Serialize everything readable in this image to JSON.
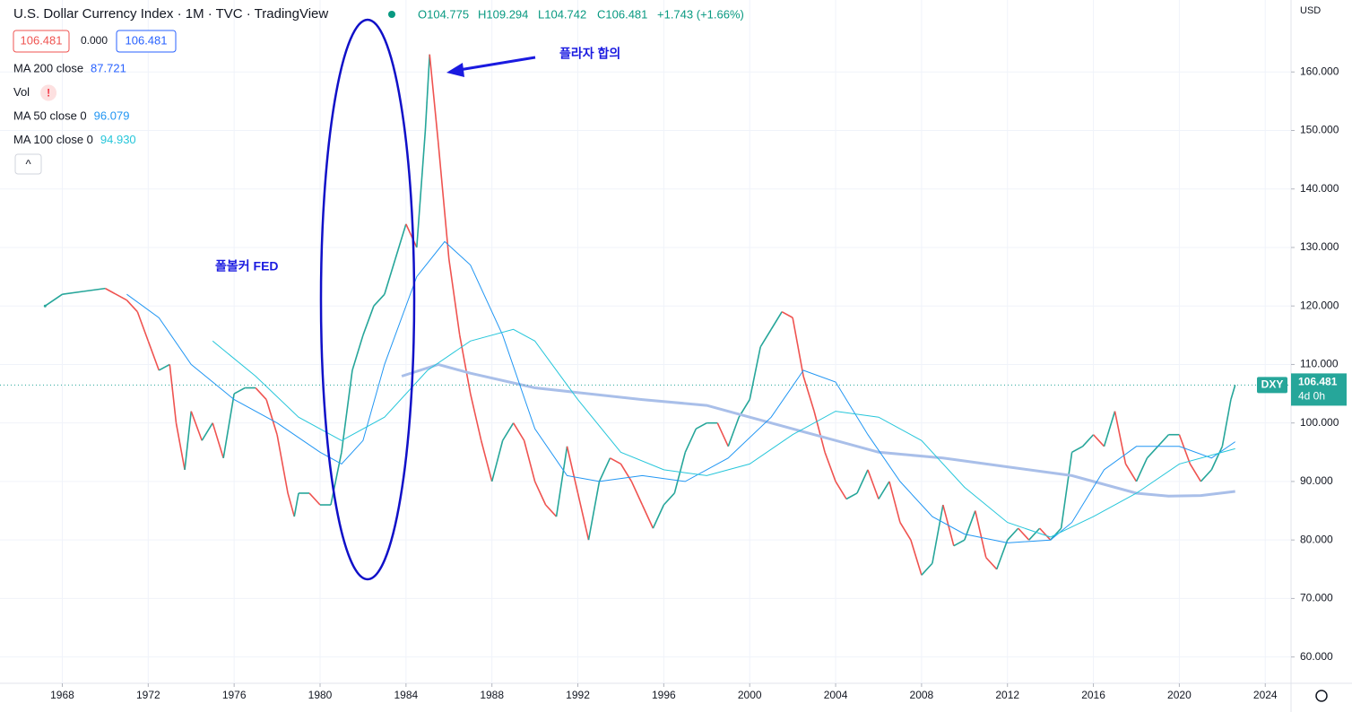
{
  "chart_data": {
    "type": "line",
    "title": "U.S. Dollar Currency Index · 1M · TVC · TradingView",
    "ohlc": [
      "O104.775",
      "H109.294",
      "L104.742",
      "C106.481",
      "+1.743 (+1.66%)"
    ],
    "legend": {
      "price_boxes": [
        "106.481",
        "0.000",
        "106.481"
      ],
      "items": [
        {
          "name": "MA 200 close",
          "value": "87.721",
          "color": "#2962ff"
        },
        {
          "name": "Vol",
          "value": "!",
          "color": "#f23645"
        },
        {
          "name": "MA 50 close 0",
          "value": "96.079",
          "color": "#2196f3"
        },
        {
          "name": "MA 100 close 0",
          "value": "94.930",
          "color": "#26c6da"
        }
      ],
      "collapse": "^"
    },
    "currency": "USD",
    "annotations": [
      "플라자 합의",
      "폴볼커 FED"
    ],
    "price_label": {
      "symbol": "DXY",
      "price": "106.481",
      "countdown": "4d 0h"
    },
    "xlim": [
      1965.1,
      2025.2
    ],
    "ylim": [
      55.5,
      172.3
    ],
    "xticks": [
      1968,
      1972,
      1976,
      1980,
      1984,
      1988,
      1992,
      1996,
      2000,
      2004,
      2008,
      2012,
      2016,
      2020,
      2024
    ],
    "yticks": [
      {
        "value": 60,
        "label": "60.000"
      },
      {
        "value": 70,
        "label": "70.000"
      },
      {
        "value": 80,
        "label": "80.000"
      },
      {
        "value": 90,
        "label": "90.000"
      },
      {
        "value": 100,
        "label": "100.000"
      },
      {
        "value": 110,
        "label": "110.000"
      },
      {
        "value": 120,
        "label": "120.000"
      },
      {
        "value": 130,
        "label": "130.000"
      },
      {
        "value": 140,
        "label": "140.000"
      },
      {
        "value": 150,
        "label": "150.000"
      },
      {
        "value": 160,
        "label": "160.000"
      }
    ],
    "grid": true,
    "series": [
      {
        "name": "DXY",
        "kind": "price",
        "up_color": "#26a69a",
        "down_color": "#ef5350",
        "x": [
          1967.2,
          1968,
          1969,
          1970,
          1971,
          1971.5,
          1972,
          1972.5,
          1973,
          1973.3,
          1973.7,
          1974,
          1974.5,
          1975,
          1975.5,
          1976,
          1976.5,
          1977,
          1977.5,
          1978,
          1978.5,
          1978.8,
          1979,
          1979.5,
          1980,
          1980.5,
          1981,
          1981.5,
          1982,
          1982.5,
          1983,
          1983.5,
          1984,
          1984.5,
          1984.9,
          1985.1,
          1985.5,
          1986,
          1986.5,
          1987,
          1987.5,
          1988,
          1988.5,
          1989,
          1989.5,
          1990,
          1990.5,
          1991,
          1991.5,
          1992,
          1992.5,
          1993,
          1993.5,
          1994,
          1994.5,
          1995,
          1995.5,
          1996,
          1996.5,
          1997,
          1997.5,
          1998,
          1998.5,
          1999,
          1999.5,
          2000,
          2000.5,
          2001,
          2001.5,
          2002,
          2002.5,
          2003,
          2003.5,
          2004,
          2004.5,
          2005,
          2005.5,
          2006,
          2006.5,
          2007,
          2007.5,
          2008,
          2008.5,
          2009,
          2009.5,
          2010,
          2010.5,
          2011,
          2011.5,
          2012,
          2012.5,
          2013,
          2013.5,
          2014,
          2014.5,
          2015,
          2015.5,
          2016,
          2016.5,
          2017,
          2017.5,
          2018,
          2018.5,
          2019,
          2019.5,
          2020,
          2020.5,
          2021,
          2021.5,
          2022,
          2022.4,
          2022.6
        ],
        "values": [
          120,
          122,
          122.5,
          123,
          121,
          119,
          114,
          109,
          110,
          100,
          92,
          102,
          97,
          100,
          94,
          105,
          106,
          106,
          104,
          98,
          88,
          84,
          88,
          88,
          86,
          86,
          95,
          109,
          115,
          120,
          122,
          128,
          134,
          130,
          150,
          163,
          148,
          128,
          115,
          105,
          97,
          90,
          97,
          100,
          97,
          90,
          86,
          84,
          96,
          88,
          80,
          90,
          94,
          93,
          90,
          86,
          82,
          86,
          88,
          95,
          99,
          100,
          100,
          96,
          101,
          104,
          113,
          116,
          119,
          118,
          108,
          102,
          95,
          90,
          87,
          88,
          92,
          87,
          90,
          83,
          80,
          74,
          76,
          86,
          79,
          80,
          85,
          77,
          75,
          80,
          82,
          80,
          82,
          80,
          82,
          95,
          96,
          98,
          96,
          102,
          93,
          90,
          94,
          96,
          98,
          98,
          93,
          90,
          92,
          96,
          104,
          106.481
        ]
      },
      {
        "name": "MA 200 close",
        "color": "#a9bfe9",
        "width": 3,
        "x": [
          1983.8,
          1985.5,
          1987,
          1990,
          1995,
          1998,
          2000,
          2003,
          2006,
          2009,
          2012,
          2015,
          2018,
          2019.5,
          2021,
          2022.6
        ],
        "values": [
          108,
          110,
          108.5,
          106,
          104,
          103,
          101,
          98,
          95,
          94,
          92.5,
          91,
          88,
          87.5,
          87.6,
          88.3
        ]
      },
      {
        "name": "MA 50 close 0",
        "color": "#2196f3",
        "width": 1,
        "x": [
          1971,
          1972.5,
          1974,
          1976,
          1978,
          1980,
          1981,
          1982,
          1983,
          1984.5,
          1985.8,
          1987,
          1988.5,
          1990,
          1991.5,
          1993,
          1995,
          1997,
          1999,
          2001,
          2002.5,
          2004,
          2005.5,
          2007,
          2008.5,
          2010,
          2012,
          2014,
          2015,
          2016.5,
          2018,
          2020,
          2021.5,
          2022.6
        ],
        "values": [
          122,
          118,
          110,
          104,
          100,
          95,
          93,
          97,
          110,
          125,
          131,
          127,
          115,
          99,
          91,
          90,
          91,
          90,
          94,
          101,
          109,
          107,
          98,
          90,
          84,
          81,
          79.5,
          80,
          83,
          92,
          96,
          96,
          94,
          96.8
        ]
      },
      {
        "name": "MA 100 close 0",
        "color": "#26c6da",
        "width": 1,
        "x": [
          1975,
          1977,
          1979,
          1981,
          1983,
          1985,
          1987,
          1989,
          1990,
          1992,
          1994,
          1996,
          1998,
          2000,
          2002,
          2004,
          2006,
          2008,
          2010,
          2012,
          2014,
          2016,
          2018,
          2020,
          2022.6
        ],
        "values": [
          114,
          108,
          101,
          97,
          101,
          109,
          114,
          116,
          114,
          104,
          95,
          92,
          91,
          93,
          98,
          102,
          101,
          97,
          89,
          83,
          80.5,
          84,
          88,
          93,
          95.6
        ]
      }
    ]
  }
}
